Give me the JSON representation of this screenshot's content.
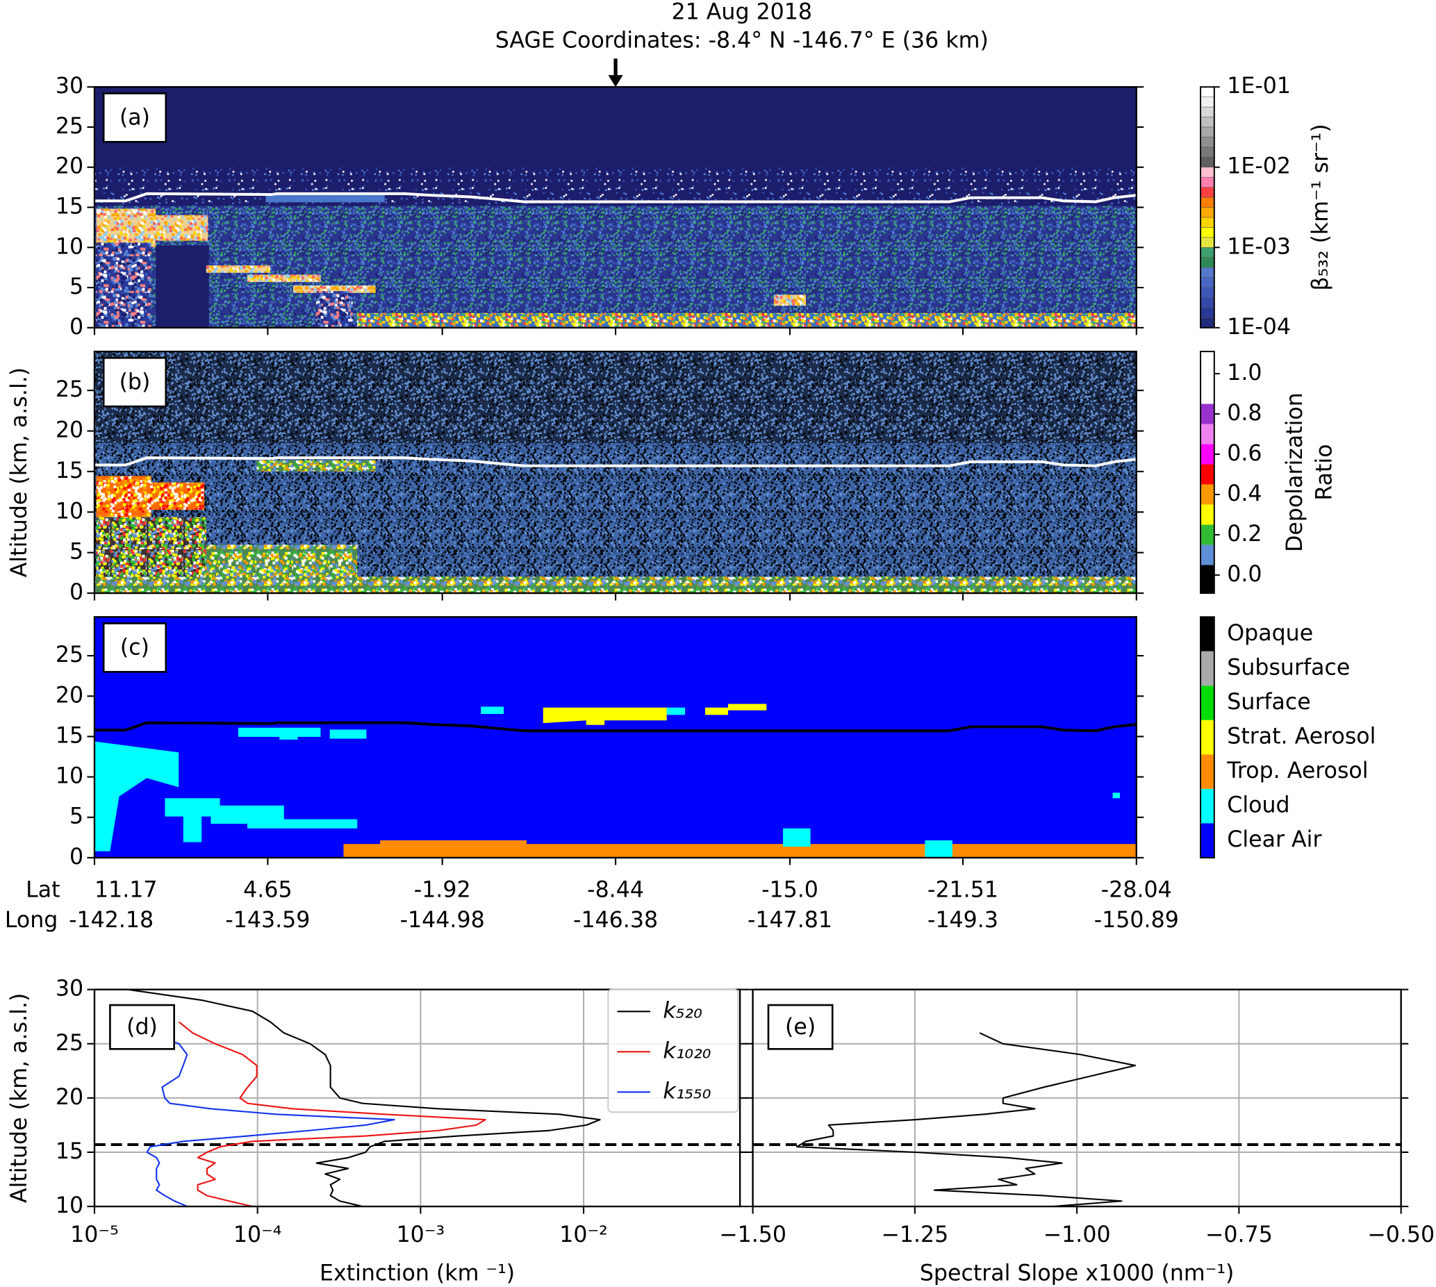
{
  "chart_data": [
    {
      "type": "heatmap",
      "title": "21 Aug 2018",
      "subtitle": "SAGE Coordinates: -8.4° N  -146.7° E  (36 km)",
      "label": "(a)",
      "xlim": [
        11.17,
        -28.04
      ],
      "ylim": [
        0,
        30
      ],
      "yticks": [
        0,
        5,
        10,
        15,
        20,
        25,
        30
      ],
      "tropopause": {
        "lat": [
          11.17,
          10.0,
          9.2,
          4.5,
          4.3,
          -0.5,
          -1.5,
          -3.0,
          -4.0,
          -5.0,
          -21.0,
          -21.8,
          -24.5,
          -25.3,
          -26.5,
          -27.2,
          -28.04
        ],
        "km": [
          15.8,
          15.8,
          16.7,
          16.6,
          16.7,
          16.7,
          16.5,
          16.3,
          16.0,
          15.7,
          15.7,
          16.2,
          16.2,
          15.8,
          15.7,
          16.2,
          16.5
        ]
      },
      "tropopause_color": "#ffffff",
      "colorbar": {
        "label": "β₅₃₂ (km⁻¹ sr⁻¹)",
        "scale": "log",
        "lim": [
          0.0001,
          0.1
        ],
        "ticks": [
          {
            "value": 0.1,
            "label": "1E-01"
          },
          {
            "value": 0.01,
            "label": "1E-02"
          },
          {
            "value": 0.001,
            "label": "1E-03"
          },
          {
            "value": 0.0001,
            "label": "1E-04"
          }
        ],
        "colors": [
          "#222a7a",
          "#2a3898",
          "#3448aa",
          "#3e58b8",
          "#4868c4",
          "#5578cc",
          "#2e8b57",
          "#40a070",
          "#e6e640",
          "#ffff00",
          "#ffd400",
          "#ffaa00",
          "#ff8000",
          "#ff4040",
          "#ff80b0",
          "#ffc0d0",
          "#606060",
          "#787878",
          "#909090",
          "#a8a8a8",
          "#c0c0c0",
          "#d8d8d8",
          "#f0f0f0",
          "#ffffff"
        ]
      }
    },
    {
      "type": "heatmap",
      "label": "(b)",
      "ylabel": "Altitude (km, a.s.l.)",
      "xlim": [
        11.17,
        -28.04
      ],
      "ylim": [
        0,
        29.8
      ],
      "yticks": [
        0,
        5,
        10,
        15,
        20,
        25
      ],
      "tropopause_color": "#ffffff",
      "colorbar": {
        "label": [
          "Depolarization",
          "Ratio"
        ],
        "scale": "linear",
        "bounds": [
          -0.09,
          0.05,
          0.15,
          0.25,
          0.35,
          0.45,
          0.55,
          0.65,
          0.75,
          0.85,
          1.11
        ],
        "colors": [
          "#000000",
          "#5f8fd6",
          "#33bb33",
          "#ffff00",
          "#ff9900",
          "#ff0000",
          "#ff00ff",
          "#ee82ee",
          "#9932cc",
          "#ffffff"
        ],
        "ticks": [
          {
            "value": 0,
            "label": "0.0"
          },
          0.2,
          0.4,
          0.6,
          0.8,
          {
            "value": 1,
            "label": "1.0"
          }
        ]
      }
    },
    {
      "type": "heatmap",
      "label": "(c)",
      "xlim": [
        11.17,
        -28.04
      ],
      "ylim": [
        0,
        29.8
      ],
      "yticks": [
        0,
        5,
        10,
        15,
        20,
        25
      ],
      "xtick_rows": [
        "Lat",
        "Long"
      ],
      "xticks": [
        11.17,
        4.65,
        -1.92,
        -8.44,
        {
          "value": -15,
          "label": "-15.0"
        },
        -21.51,
        -28.04
      ],
      "long_labels": [
        -142.18,
        -143.59,
        -144.98,
        -146.38,
        -147.81,
        -149.3,
        -150.89
      ],
      "tropopause_color": "#000000",
      "classes": [
        {
          "name": "Opaque",
          "color": "#000000"
        },
        {
          "name": "Subsurface",
          "color": "#a9a9a9"
        },
        {
          "name": "Surface",
          "color": "#00dd00"
        },
        {
          "name": "Strat. Aerosol",
          "color": "#ffff00"
        },
        {
          "name": "Trop. Aerosol",
          "color": "#ff8c00"
        },
        {
          "name": "Cloud",
          "color": "#00ffff"
        },
        {
          "name": "Clear Air",
          "color": "#0000ff"
        }
      ]
    },
    {
      "type": "line",
      "label": "(d)",
      "xlabel": "Extinction (km ⁻¹)",
      "ylabel": "Altitude (km, a.s.l.)",
      "xscale": "log",
      "xlim": [
        1e-05,
        0.091
      ],
      "xticks": [
        {
          "value": 1e-05,
          "label": "10⁻⁵"
        },
        {
          "value": 0.0001,
          "label": "10⁻⁴"
        },
        {
          "value": 0.001,
          "label": "10⁻³"
        },
        {
          "value": 0.01,
          "label": "10⁻²"
        }
      ],
      "ylim": [
        10,
        30
      ],
      "yticks": [
        10,
        15,
        20,
        25,
        30
      ],
      "grid": true,
      "legend": "upper right",
      "tropopause_km": 15.7,
      "x": [
        10,
        10.5,
        11,
        11.5,
        12,
        12.5,
        13,
        13.5,
        14,
        14.5,
        15,
        15.5,
        16,
        16.5,
        17,
        17.5,
        18,
        18.5,
        19,
        19.5,
        20,
        21,
        22,
        23,
        24,
        25,
        26,
        27,
        28,
        29,
        30
      ],
      "series": [
        {
          "name": "k₅₂₀",
          "color": "#000000",
          "values": [
            0.00044,
            0.00032,
            0.00028,
            0.00029,
            0.00028,
            0.00032,
            0.00026,
            0.00036,
            0.00023,
            0.00036,
            0.00046,
            0.00049,
            0.0006,
            0.0017,
            0.0062,
            0.0104,
            0.0126,
            0.0071,
            0.0013,
            0.00044,
            0.00032,
            0.00028,
            0.00028,
            0.00028,
            0.00026,
            0.00021,
            0.000145,
            0.00012,
            9.3e-05,
            4.6e-05,
            1.6e-05
          ]
        },
        {
          "name": "k₁₀₂₀",
          "color": "#ee1111",
          "values": [
            9.3e-05,
            6.7e-05,
            4.9e-05,
            4.3e-05,
            4.3e-05,
            5.5e-05,
            4.9e-05,
            4.9e-05,
            5.5e-05,
            4.3e-05,
            4.9e-05,
            5.9e-05,
            9.3e-05,
            0.00046,
            0.0013,
            0.0022,
            0.0025,
            0.0006,
            0.000165,
            8.7e-05,
            7.8e-05,
            8.7e-05,
            9.9e-05,
            9.9e-05,
            8.1e-05,
            5.5e-05,
            4e-05,
            3.3e-05,
            null,
            null,
            null
          ]
        },
        {
          "name": "k₁₅₅₀",
          "color": "#1133ee",
          "values": [
            3.7e-05,
            3.1e-05,
            2.7e-05,
            2.4e-05,
            2.5e-05,
            2.4e-05,
            2.4e-05,
            2.4e-05,
            2.5e-05,
            2.4e-05,
            2.1e-05,
            2.2e-05,
            3.5e-05,
            8.7e-05,
            0.00021,
            0.00046,
            0.00069,
            0.00013,
            5.2e-05,
            2.9e-05,
            2.7e-05,
            2.6e-05,
            3.3e-05,
            3.5e-05,
            3.7e-05,
            3.3e-05,
            2.2e-05,
            null,
            null,
            null,
            null
          ]
        }
      ]
    },
    {
      "type": "line",
      "label": "(e)",
      "xlabel": "Spectral Slope x1000 (nm⁻¹)",
      "xscale": "linear",
      "xlim": [
        -1.5,
        -0.5
      ],
      "xticks": [
        {
          "value": -1.5,
          "label": "−1.50"
        },
        {
          "value": -1.25,
          "label": "−1.25"
        },
        {
          "value": -1,
          "label": "−1.00"
        },
        {
          "value": -0.75,
          "label": "−0.75"
        },
        {
          "value": -0.5,
          "label": "−0.50"
        }
      ],
      "ylim": [
        10,
        30
      ],
      "yticks": [
        10,
        15,
        20,
        25,
        30
      ],
      "ytick_labels": false,
      "grid": true,
      "tropopause_km": 15.7,
      "x": [
        10,
        10.5,
        11,
        11.5,
        12,
        12.5,
        13,
        13.5,
        14,
        14.5,
        15,
        15.5,
        16,
        16.5,
        17,
        17.5,
        18,
        18.5,
        19,
        19.5,
        20,
        21,
        22,
        23,
        24,
        25,
        26,
        27,
        28,
        29,
        30
      ],
      "color": "#000000",
      "values": [
        -1.037,
        -0.931,
        -1.051,
        -1.22,
        -1.093,
        -1.121,
        -1.065,
        -1.079,
        -1.023,
        -1.107,
        -1.249,
        -1.432,
        -1.418,
        -1.376,
        -1.376,
        -1.383,
        -1.249,
        -1.143,
        -1.065,
        -1.114,
        -1.114,
        -1.051,
        -0.98,
        -0.91,
        -0.994,
        -1.114,
        -1.15,
        null,
        null,
        null,
        null
      ]
    }
  ]
}
